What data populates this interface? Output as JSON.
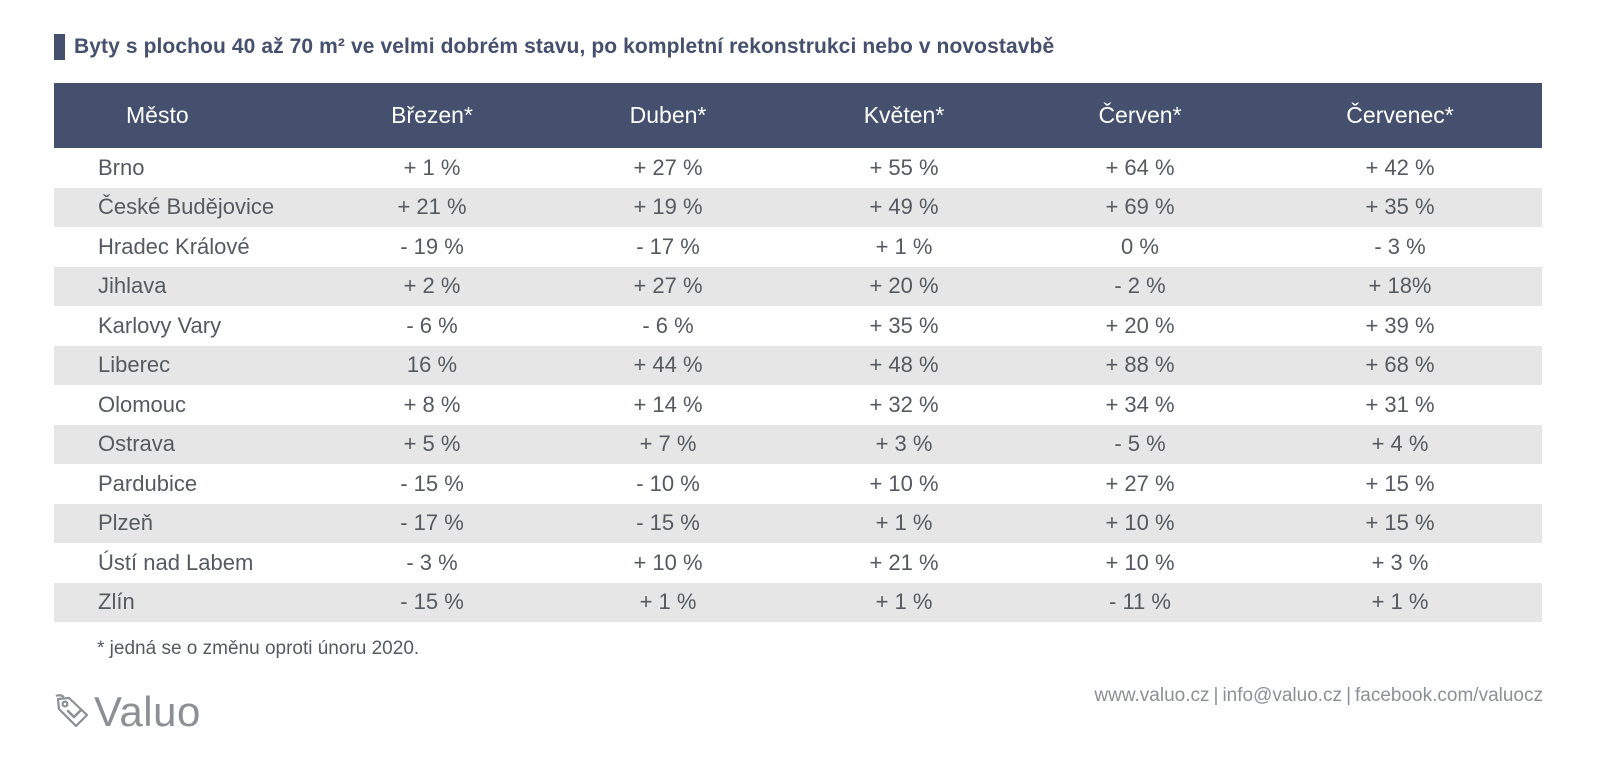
{
  "title": "Byty s plochou 40 až 70 m² ve velmi dobrém stavu, po kompletní rekonstrukci nebo v novostavbě",
  "table": {
    "headers": [
      "Město",
      "Březen*",
      "Duben*",
      "Květen*",
      "Červen*",
      "Červenec*"
    ],
    "rows": [
      [
        "Brno",
        "+ 1 %",
        "+ 27 %",
        "+ 55 %",
        "+ 64 %",
        "+ 42 %"
      ],
      [
        "České Budějovice",
        "+ 21 %",
        "+ 19 %",
        "+ 49 %",
        "+ 69 %",
        "+ 35 %"
      ],
      [
        "Hradec Králové",
        "- 19 %",
        "- 17 %",
        "+ 1 %",
        "0 %",
        "- 3 %"
      ],
      [
        "Jihlava",
        "+ 2 %",
        "+ 27 %",
        "+ 20 %",
        "- 2 %",
        "+ 18%"
      ],
      [
        "Karlovy Vary",
        "- 6 %",
        "- 6 %",
        "+ 35 %",
        "+ 20 %",
        "+ 39 %"
      ],
      [
        "Liberec",
        "16 %",
        "+ 44 %",
        "+ 48 %",
        "+ 88 %",
        "+ 68 %"
      ],
      [
        "Olomouc",
        "+ 8 %",
        "+ 14 %",
        "+ 32 %",
        "+ 34 %",
        "+ 31 %"
      ],
      [
        "Ostrava",
        "+ 5 %",
        "+ 7 %",
        "+ 3 %",
        "- 5 %",
        "+ 4 %"
      ],
      [
        "Pardubice",
        "- 15 %",
        "- 10 %",
        "+ 10 %",
        "+ 27 %",
        "+ 15 %"
      ],
      [
        "Plzeň",
        "- 17 %",
        "- 15 %",
        "+ 1 %",
        "+ 10 %",
        "+ 15 %"
      ],
      [
        "Ústí nad Labem",
        "- 3 %",
        "+ 10 %",
        "+ 21 %",
        "+ 10 %",
        "+ 3 %"
      ],
      [
        "Zlín",
        "- 15 %",
        "+ 1 %",
        "+ 1 %",
        "- 11 %",
        "+ 1 %"
      ]
    ]
  },
  "footnote": "* jedná se o změnu oproti únoru 2020.",
  "logo": {
    "text": "Valuo",
    "icon": "price-tag-icon"
  },
  "contacts": {
    "web": "www.valuo.cz",
    "email": "info@valuo.cz",
    "facebook": "facebook.com/valuocz",
    "separator": "|"
  },
  "colors": {
    "header_bg": "#44506e",
    "stripe": "#e6e6e6",
    "text": "#555a61",
    "muted": "#8c8f94"
  }
}
